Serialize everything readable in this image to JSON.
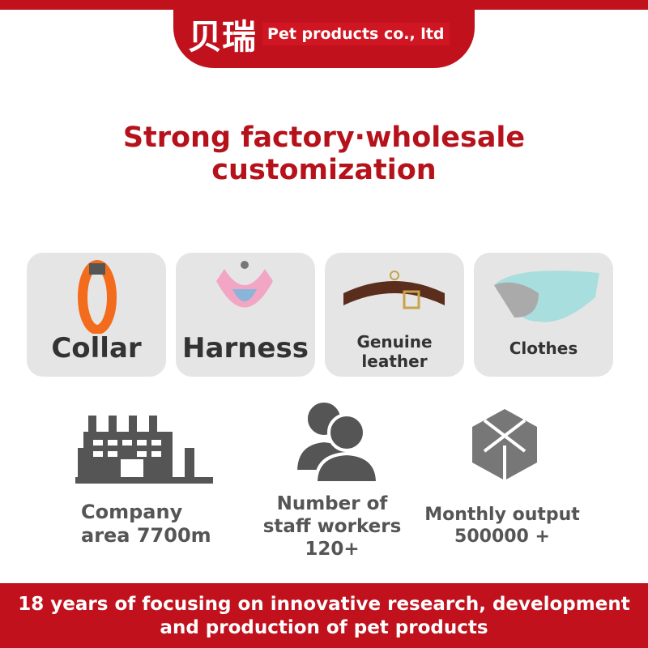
{
  "header": {
    "logo_text": "贝瑞",
    "company": "Pet products co., ltd",
    "brand_color": "#c0111d"
  },
  "title": {
    "line1": "Strong factory·wholesale",
    "line2": "customization"
  },
  "categories": [
    {
      "label": "Collar",
      "icon": "orange-collar"
    },
    {
      "label": "Harness",
      "icon": "pink-harness"
    },
    {
      "label": "Genuine leather",
      "icon": "leather-collar"
    },
    {
      "label": "Clothes",
      "icon": "pet-vest"
    }
  ],
  "stats": [
    {
      "icon": "factory-icon",
      "line1": "Company",
      "line2": "area 7700m"
    },
    {
      "icon": "people-icon",
      "line1": "Number of",
      "line2": "staff workers",
      "line3": "120+"
    },
    {
      "icon": "cube-icon",
      "line1": "Monthly output",
      "line2": "500000 +"
    }
  ],
  "footer": {
    "line1": "18 years of focusing on innovative research, development",
    "line2": "and production of pet products"
  }
}
